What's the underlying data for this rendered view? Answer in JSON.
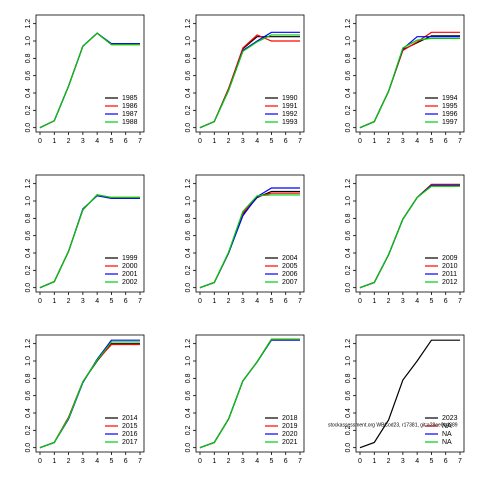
{
  "chart_data": [
    {
      "type": "line",
      "x": [
        0,
        1,
        2,
        3,
        4,
        5,
        6,
        7
      ],
      "xlim": [
        -0.28,
        7.28
      ],
      "xticks": [
        0,
        1,
        2,
        3,
        4,
        5,
        6,
        7
      ],
      "ylim": [
        -0.05,
        1.3
      ],
      "yticks": [
        {
          "value": 0,
          "label": "0.0"
        },
        {
          "value": 0.2,
          "label": "0.2"
        },
        {
          "value": 0.4,
          "label": "0.4"
        },
        {
          "value": 0.6,
          "label": "0.6"
        },
        {
          "value": 0.8,
          "label": "0.8"
        },
        {
          "value": 1,
          "label": "1.0"
        },
        {
          "value": 1.2,
          "label": "1.2"
        }
      ],
      "legend": "bottom-right",
      "series": [
        {
          "name": "1985",
          "color": "black",
          "values": [
            0,
            0.08,
            0.48,
            0.94,
            1.09,
            0.96,
            0.96,
            0.96
          ]
        },
        {
          "name": "1986",
          "color": "red",
          "values": [
            0,
            0.08,
            0.48,
            0.94,
            1.09,
            0.96,
            0.96,
            0.96
          ]
        },
        {
          "name": "1987",
          "color": "blue",
          "values": [
            0,
            0.08,
            0.48,
            0.94,
            1.09,
            0.97,
            0.97,
            0.97
          ]
        },
        {
          "name": "1988",
          "color": "#00cc00",
          "values": [
            0,
            0.08,
            0.48,
            0.94,
            1.09,
            0.96,
            0.96,
            0.96
          ]
        }
      ]
    },
    {
      "type": "line",
      "x": [
        0,
        1,
        2,
        3,
        4,
        5,
        6,
        7
      ],
      "xlim": [
        -0.28,
        7.28
      ],
      "xticks": [
        0,
        1,
        2,
        3,
        4,
        5,
        6,
        7
      ],
      "ylim": [
        -0.05,
        1.3
      ],
      "yticks": [
        {
          "value": 0,
          "label": "0.0"
        },
        {
          "value": 0.2,
          "label": "0.2"
        },
        {
          "value": 0.4,
          "label": "0.4"
        },
        {
          "value": 0.6,
          "label": "0.6"
        },
        {
          "value": 0.8,
          "label": "0.8"
        },
        {
          "value": 1,
          "label": "1.0"
        },
        {
          "value": 1.2,
          "label": "1.2"
        }
      ],
      "legend": "bottom-right",
      "series": [
        {
          "name": "1990",
          "color": "black",
          "values": [
            0,
            0.07,
            0.45,
            0.91,
            1.05,
            1.05,
            1.05,
            1.05
          ]
        },
        {
          "name": "1991",
          "color": "red",
          "values": [
            0,
            0.07,
            0.45,
            0.92,
            1.07,
            1.0,
            1.0,
            1.0
          ]
        },
        {
          "name": "1992",
          "color": "blue",
          "values": [
            0,
            0.07,
            0.43,
            0.89,
            1.0,
            1.1,
            1.1,
            1.1
          ]
        },
        {
          "name": "1993",
          "color": "#00cc00",
          "values": [
            0,
            0.07,
            0.43,
            0.88,
            0.99,
            1.07,
            1.07,
            1.07
          ]
        }
      ]
    },
    {
      "type": "line",
      "x": [
        0,
        1,
        2,
        3,
        4,
        5,
        6,
        7
      ],
      "xlim": [
        -0.28,
        7.28
      ],
      "xticks": [
        0,
        1,
        2,
        3,
        4,
        5,
        6,
        7
      ],
      "ylim": [
        -0.05,
        1.3
      ],
      "yticks": [
        {
          "value": 0,
          "label": "0.0"
        },
        {
          "value": 0.2,
          "label": "0.2"
        },
        {
          "value": 0.4,
          "label": "0.4"
        },
        {
          "value": 0.6,
          "label": "0.6"
        },
        {
          "value": 0.8,
          "label": "0.8"
        },
        {
          "value": 1,
          "label": "1.0"
        },
        {
          "value": 1.2,
          "label": "1.2"
        }
      ],
      "legend": "bottom-right",
      "series": [
        {
          "name": "1994",
          "color": "black",
          "values": [
            0,
            0.07,
            0.42,
            0.9,
            0.98,
            1.06,
            1.06,
            1.06
          ]
        },
        {
          "name": "1995",
          "color": "red",
          "values": [
            0,
            0.07,
            0.42,
            0.89,
            0.99,
            1.1,
            1.1,
            1.1
          ]
        },
        {
          "name": "1996",
          "color": "blue",
          "values": [
            0,
            0.07,
            0.42,
            0.91,
            1.05,
            1.05,
            1.05,
            1.05
          ]
        },
        {
          "name": "1997",
          "color": "#00cc00",
          "values": [
            0,
            0.07,
            0.42,
            0.92,
            1.01,
            1.03,
            1.03,
            1.03
          ]
        }
      ]
    },
    {
      "type": "line",
      "x": [
        0,
        1,
        2,
        3,
        4,
        5,
        6,
        7
      ],
      "xlim": [
        -0.28,
        7.28
      ],
      "xticks": [
        0,
        1,
        2,
        3,
        4,
        5,
        6,
        7
      ],
      "ylim": [
        -0.05,
        1.3
      ],
      "yticks": [
        {
          "value": 0,
          "label": "0.0"
        },
        {
          "value": 0.2,
          "label": "0.2"
        },
        {
          "value": 0.4,
          "label": "0.4"
        },
        {
          "value": 0.6,
          "label": "0.6"
        },
        {
          "value": 0.8,
          "label": "0.8"
        },
        {
          "value": 1,
          "label": "1.0"
        },
        {
          "value": 1.2,
          "label": "1.2"
        }
      ],
      "legend": "bottom-right",
      "series": [
        {
          "name": "1999",
          "color": "black",
          "values": [
            0,
            0.07,
            0.42,
            0.9,
            1.07,
            1.04,
            1.04,
            1.04
          ]
        },
        {
          "name": "2000",
          "color": "red",
          "values": [
            0,
            0.07,
            0.42,
            0.9,
            1.07,
            1.04,
            1.04,
            1.04
          ]
        },
        {
          "name": "2001",
          "color": "blue",
          "values": [
            0,
            0.07,
            0.42,
            0.91,
            1.06,
            1.03,
            1.03,
            1.03
          ]
        },
        {
          "name": "2002",
          "color": "#00cc00",
          "values": [
            0,
            0.07,
            0.42,
            0.9,
            1.07,
            1.04,
            1.04,
            1.04
          ]
        }
      ]
    },
    {
      "type": "line",
      "x": [
        0,
        1,
        2,
        3,
        4,
        5,
        6,
        7
      ],
      "xlim": [
        -0.28,
        7.28
      ],
      "xticks": [
        0,
        1,
        2,
        3,
        4,
        5,
        6,
        7
      ],
      "ylim": [
        -0.05,
        1.3
      ],
      "yticks": [
        {
          "value": 0,
          "label": "0.0"
        },
        {
          "value": 0.2,
          "label": "0.2"
        },
        {
          "value": 0.4,
          "label": "0.4"
        },
        {
          "value": 0.6,
          "label": "0.6"
        },
        {
          "value": 0.8,
          "label": "0.8"
        },
        {
          "value": 1,
          "label": "1.0"
        },
        {
          "value": 1.2,
          "label": "1.2"
        }
      ],
      "legend": "bottom-right",
      "series": [
        {
          "name": "2004",
          "color": "black",
          "values": [
            0,
            0.06,
            0.4,
            0.85,
            1.04,
            1.11,
            1.11,
            1.11
          ]
        },
        {
          "name": "2005",
          "color": "red",
          "values": [
            0,
            0.06,
            0.4,
            0.86,
            1.05,
            1.09,
            1.09,
            1.09
          ]
        },
        {
          "name": "2006",
          "color": "blue",
          "values": [
            0,
            0.06,
            0.4,
            0.83,
            1.05,
            1.15,
            1.15,
            1.15
          ]
        },
        {
          "name": "2007",
          "color": "#00cc00",
          "values": [
            0,
            0.06,
            0.41,
            0.88,
            1.06,
            1.07,
            1.07,
            1.07
          ]
        }
      ]
    },
    {
      "type": "line",
      "x": [
        0,
        1,
        2,
        3,
        4,
        5,
        6,
        7
      ],
      "xlim": [
        -0.28,
        7.28
      ],
      "xticks": [
        0,
        1,
        2,
        3,
        4,
        5,
        6,
        7
      ],
      "ylim": [
        -0.05,
        1.3
      ],
      "yticks": [
        {
          "value": 0,
          "label": "0.0"
        },
        {
          "value": 0.2,
          "label": "0.2"
        },
        {
          "value": 0.4,
          "label": "0.4"
        },
        {
          "value": 0.6,
          "label": "0.6"
        },
        {
          "value": 0.8,
          "label": "0.8"
        },
        {
          "value": 1,
          "label": "1.0"
        },
        {
          "value": 1.2,
          "label": "1.2"
        }
      ],
      "legend": "bottom-right",
      "series": [
        {
          "name": "2009",
          "color": "black",
          "values": [
            0,
            0.06,
            0.38,
            0.79,
            1.04,
            1.19,
            1.19,
            1.19
          ]
        },
        {
          "name": "2010",
          "color": "red",
          "values": [
            0,
            0.06,
            0.38,
            0.79,
            1.04,
            1.19,
            1.19,
            1.19
          ]
        },
        {
          "name": "2011",
          "color": "blue",
          "values": [
            0,
            0.06,
            0.38,
            0.79,
            1.04,
            1.18,
            1.18,
            1.18
          ]
        },
        {
          "name": "2012",
          "color": "#00cc00",
          "values": [
            0,
            0.06,
            0.38,
            0.79,
            1.04,
            1.17,
            1.17,
            1.17
          ]
        }
      ]
    },
    {
      "type": "line",
      "x": [
        0,
        1,
        2,
        3,
        4,
        5,
        6,
        7
      ],
      "xlim": [
        -0.28,
        7.28
      ],
      "xticks": [
        0,
        1,
        2,
        3,
        4,
        5,
        6,
        7
      ],
      "ylim": [
        -0.05,
        1.3
      ],
      "yticks": [
        {
          "value": 0,
          "label": "0.0"
        },
        {
          "value": 0.2,
          "label": "0.2"
        },
        {
          "value": 0.4,
          "label": "0.4"
        },
        {
          "value": 0.6,
          "label": "0.6"
        },
        {
          "value": 0.8,
          "label": "0.8"
        },
        {
          "value": 1,
          "label": "1.0"
        },
        {
          "value": 1.2,
          "label": "1.2"
        }
      ],
      "legend": "bottom-right",
      "series": [
        {
          "name": "2014",
          "color": "black",
          "values": [
            0,
            0.06,
            0.35,
            0.76,
            1.0,
            1.2,
            1.2,
            1.2
          ]
        },
        {
          "name": "2015",
          "color": "red",
          "values": [
            0,
            0.06,
            0.35,
            0.76,
            1.01,
            1.19,
            1.19,
            1.19
          ]
        },
        {
          "name": "2016",
          "color": "blue",
          "values": [
            0,
            0.06,
            0.33,
            0.75,
            1.02,
            1.24,
            1.24,
            1.24
          ]
        },
        {
          "name": "2017",
          "color": "#00cc00",
          "values": [
            0,
            0.06,
            0.34,
            0.76,
            1.01,
            1.22,
            1.22,
            1.22
          ]
        }
      ]
    },
    {
      "type": "line",
      "x": [
        0,
        1,
        2,
        3,
        4,
        5,
        6,
        7
      ],
      "xlim": [
        -0.28,
        7.28
      ],
      "xticks": [
        0,
        1,
        2,
        3,
        4,
        5,
        6,
        7
      ],
      "ylim": [
        -0.05,
        1.3
      ],
      "yticks": [
        {
          "value": 0,
          "label": "0.0"
        },
        {
          "value": 0.2,
          "label": "0.2"
        },
        {
          "value": 0.4,
          "label": "0.4"
        },
        {
          "value": 0.6,
          "label": "0.6"
        },
        {
          "value": 0.8,
          "label": "0.8"
        },
        {
          "value": 1,
          "label": "1.0"
        },
        {
          "value": 1.2,
          "label": "1.2"
        }
      ],
      "legend": "bottom-right",
      "series": [
        {
          "name": "2018",
          "color": "black",
          "values": [
            0,
            0.06,
            0.33,
            0.77,
            0.99,
            1.25,
            1.25,
            1.25
          ]
        },
        {
          "name": "2019",
          "color": "red",
          "values": [
            0,
            0.06,
            0.33,
            0.77,
            0.99,
            1.25,
            1.25,
            1.25
          ]
        },
        {
          "name": "2020",
          "color": "blue",
          "values": [
            0,
            0.06,
            0.33,
            0.77,
            0.99,
            1.24,
            1.24,
            1.24
          ]
        },
        {
          "name": "2021",
          "color": "#00cc00",
          "values": [
            0,
            0.06,
            0.33,
            0.77,
            0.99,
            1.25,
            1.25,
            1.25
          ]
        }
      ]
    },
    {
      "type": "line",
      "x": [
        0,
        1,
        2,
        3,
        4,
        5,
        6,
        7
      ],
      "xlim": [
        -0.28,
        7.28
      ],
      "xticks": [
        0,
        1,
        2,
        3,
        4,
        5,
        6,
        7
      ],
      "ylim": [
        -0.05,
        1.3
      ],
      "yticks": [
        {
          "value": 0,
          "label": "0.0"
        },
        {
          "value": 0.2,
          "label": "0.2"
        },
        {
          "value": 0.4,
          "label": "0.4"
        },
        {
          "value": 0.6,
          "label": "0.6"
        },
        {
          "value": 0.8,
          "label": "0.8"
        },
        {
          "value": 1,
          "label": "1.0"
        },
        {
          "value": 1.2,
          "label": "1.2"
        }
      ],
      "legend": "bottom-right",
      "annotation": "stockassessment.org WBCod23, r17381, git:a28ee0b4389",
      "series": [
        {
          "name": "2023",
          "color": "black",
          "values": [
            0,
            0.06,
            0.32,
            0.78,
            1.0,
            1.24,
            1.24,
            1.24
          ]
        },
        {
          "name": "NA",
          "color": "red",
          "values": [
            null,
            null,
            null,
            null,
            null,
            null,
            null,
            null
          ]
        },
        {
          "name": "NA",
          "color": "blue",
          "values": [
            null,
            null,
            null,
            null,
            null,
            null,
            null,
            null
          ]
        },
        {
          "name": "NA",
          "color": "#00cc00",
          "values": [
            null,
            null,
            null,
            null,
            null,
            null,
            null,
            null
          ]
        }
      ]
    }
  ]
}
